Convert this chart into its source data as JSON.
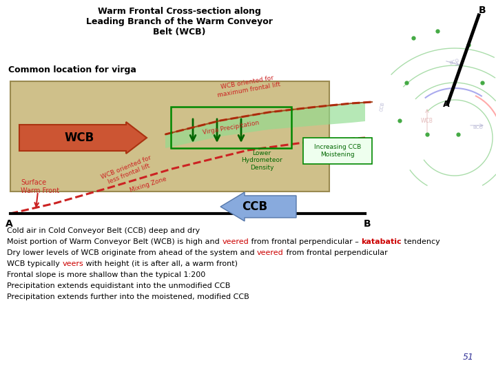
{
  "title": "Warm Frontal Cross-section along\nLeading Branch of the Warm Conveyor\nBelt (WCB)",
  "subtitle": "Common location for virga",
  "bg_color": "#ffffff",
  "bottom_texts": [
    {
      "parts": [
        {
          "t": "Cold air in Cold Conveyor Belt (CCB) deep and dry",
          "color": "#000000",
          "bold": false
        }
      ]
    },
    {
      "parts": [
        {
          "t": "Moist portion of Warm Conveyor Belt (WCB) is high and ",
          "color": "#000000",
          "bold": false
        },
        {
          "t": "veered",
          "color": "#cc0000",
          "bold": false
        },
        {
          "t": " from frontal perpendicular – ",
          "color": "#000000",
          "bold": false
        },
        {
          "t": "katabatic",
          "color": "#cc0000",
          "bold": true
        },
        {
          "t": " tendency",
          "color": "#000000",
          "bold": false
        }
      ]
    },
    {
      "parts": [
        {
          "t": "Dry lower levels of WCB originate from ahead of the system and ",
          "color": "#000000",
          "bold": false
        },
        {
          "t": "veered",
          "color": "#cc0000",
          "bold": false
        },
        {
          "t": " from frontal perpendicular",
          "color": "#000000",
          "bold": false
        }
      ]
    },
    {
      "parts": [
        {
          "t": "WCB typically ",
          "color": "#000000",
          "bold": false
        },
        {
          "t": "veers",
          "color": "#cc0000",
          "bold": false
        },
        {
          "t": " with height (it is after all, a warm front)",
          "color": "#000000",
          "bold": false
        }
      ]
    },
    {
      "parts": [
        {
          "t": "Frontal slope is more shallow than the typical 1:200",
          "color": "#000000",
          "bold": false
        }
      ]
    },
    {
      "parts": [
        {
          "t": "Precipitation extends equidistant into the unmodified CCB",
          "color": "#000000",
          "bold": false
        }
      ]
    },
    {
      "parts": [
        {
          "t": "Precipitation extends further into the moistened, modified CCB",
          "color": "#000000",
          "bold": false
        }
      ]
    }
  ],
  "page_number": "51"
}
